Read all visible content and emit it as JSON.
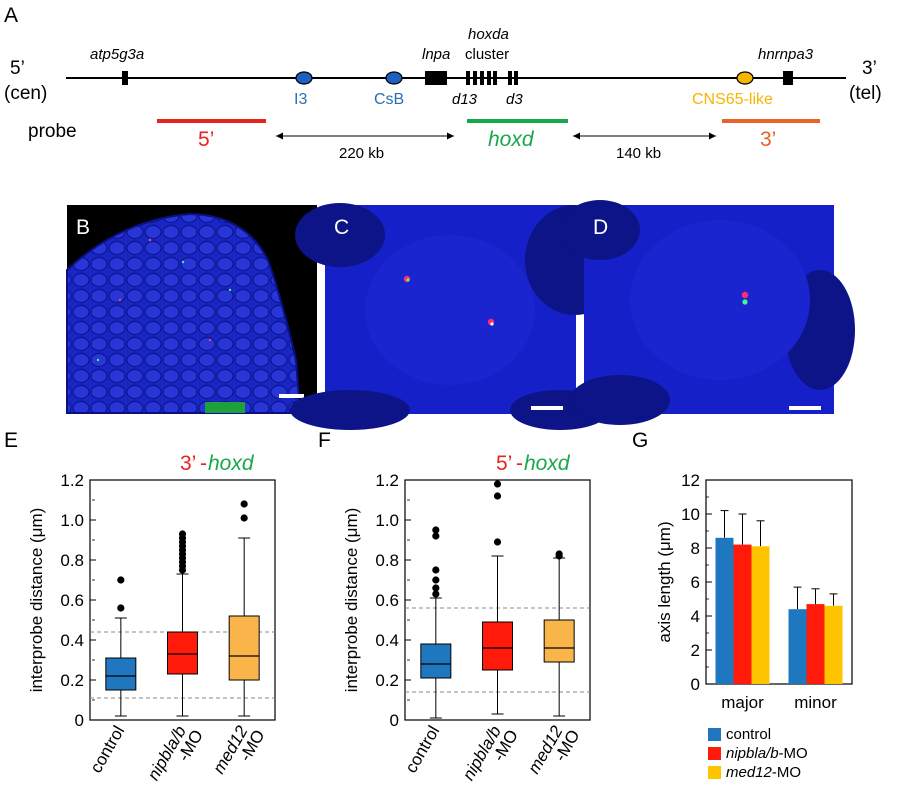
{
  "panel_letters": {
    "a": "A",
    "b": "B",
    "c": "C",
    "d": "D",
    "e": "E",
    "f": "F",
    "g": "G"
  },
  "locus_map": {
    "end_left_top": "5’",
    "end_left_bottom": "(cen)",
    "end_right_top": "3’",
    "end_right_bottom": "(tel)",
    "genes": {
      "atp5g3a": "atp5g3a",
      "lnpa": "lnpa",
      "hoxda": "hoxda",
      "cluster": "cluster",
      "hnrnpa3": "hnrnpa3",
      "d13": "d13",
      "d3": "d3"
    },
    "elements": {
      "i3": "I3",
      "csb": "CsB",
      "cns65": "CNS65-like"
    },
    "probe_label": "probe",
    "probes": {
      "five": "5’",
      "hoxd": "hoxd",
      "three": "3’"
    },
    "distances": {
      "left": "220 kb",
      "right": "140 kb"
    }
  },
  "colors": {
    "red": "#e8231e",
    "green": "#16a84a",
    "orange": "#e8622a",
    "blue_text": "#2a6fb5",
    "yellow": "#f7b500",
    "control": "#1f77c0",
    "nipbl": "#ff1a0a",
    "med12_box": "#f9b44a",
    "med12_bar": "#ffc400",
    "micro_bg": "#1620c8",
    "ellipse_blue": "#1f5fc0"
  },
  "chart_data": [
    {
      "id": "E",
      "type": "box",
      "title_parts": {
        "left": "3’",
        "sep": "-",
        "right": "hoxd"
      },
      "ylabel": "interprobe distance (μm)",
      "ylim": [
        0,
        1.2
      ],
      "yticks": [
        "0",
        "0.2",
        "0.4",
        "0.6",
        "0.8",
        "1.0",
        "1.2"
      ],
      "ytick_values": [
        0,
        0.2,
        0.4,
        0.6,
        0.8,
        1.0,
        1.2
      ],
      "categories": [
        "control",
        "nipbla/b",
        "med12"
      ],
      "category_sub": [
        "",
        "-MO",
        "-MO"
      ],
      "reference_lines": [
        0.44,
        0.11
      ],
      "series": [
        {
          "q1": 0.15,
          "median": 0.22,
          "q3": 0.31,
          "whisker_low": 0.02,
          "whisker_high": 0.51,
          "outliers": [
            0.56,
            0.7
          ]
        },
        {
          "q1": 0.23,
          "median": 0.33,
          "q3": 0.44,
          "whisker_low": 0.02,
          "whisker_high": 0.73,
          "outliers": [
            0.75,
            0.77,
            0.79,
            0.81,
            0.83,
            0.85,
            0.87,
            0.89,
            0.91,
            0.93
          ]
        },
        {
          "q1": 0.2,
          "median": 0.32,
          "q3": 0.52,
          "whisker_low": 0.02,
          "whisker_high": 0.91,
          "outliers": [
            1.01,
            1.08
          ]
        }
      ]
    },
    {
      "id": "F",
      "type": "box",
      "title_parts": {
        "left": "5’",
        "sep": "-",
        "right": "hoxd"
      },
      "ylabel": "interprobe distance (μm)",
      "ylim": [
        0,
        1.2
      ],
      "yticks": [
        "0",
        "0.2",
        "0.4",
        "0.6",
        "0.8",
        "1.0",
        "1.2"
      ],
      "ytick_values": [
        0,
        0.2,
        0.4,
        0.6,
        0.8,
        1.0,
        1.2
      ],
      "categories": [
        "control",
        "nipbla/b",
        "med12"
      ],
      "category_sub": [
        "",
        "-MO",
        "-MO"
      ],
      "reference_lines": [
        0.56,
        0.14
      ],
      "series": [
        {
          "q1": 0.21,
          "median": 0.28,
          "q3": 0.38,
          "whisker_low": 0.01,
          "whisker_high": 0.61,
          "outliers": [
            0.63,
            0.66,
            0.7,
            0.75,
            0.92,
            0.95
          ]
        },
        {
          "q1": 0.25,
          "median": 0.36,
          "q3": 0.49,
          "whisker_low": 0.03,
          "whisker_high": 0.82,
          "outliers": [
            0.89,
            1.12,
            1.18
          ]
        },
        {
          "q1": 0.29,
          "median": 0.36,
          "q3": 0.5,
          "whisker_low": 0.02,
          "whisker_high": 0.81,
          "outliers": [
            0.82,
            0.83
          ]
        }
      ]
    },
    {
      "id": "G",
      "type": "bar",
      "ylabel": "axis length (μm)",
      "ylim": [
        0,
        12
      ],
      "yticks": [
        "0",
        "2",
        "4",
        "6",
        "8",
        "10",
        "12"
      ],
      "ytick_values": [
        0,
        2,
        4,
        6,
        8,
        10,
        12
      ],
      "categories": [
        "major",
        "minor"
      ],
      "series": [
        {
          "name": "control",
          "values": [
            8.6,
            4.4
          ],
          "errors": [
            1.6,
            1.3
          ]
        },
        {
          "name": "nipbla/b-MO",
          "values": [
            8.2,
            4.7
          ],
          "errors": [
            1.8,
            0.9
          ]
        },
        {
          "name": "med12-MO",
          "values": [
            8.1,
            4.6
          ],
          "errors": [
            1.5,
            0.7
          ]
        }
      ],
      "legend_parts": [
        {
          "italic": "",
          "plain": "control"
        },
        {
          "italic": "nipbla/b",
          "plain": "-MO"
        },
        {
          "italic": "med12",
          "plain": "-MO"
        }
      ]
    }
  ]
}
